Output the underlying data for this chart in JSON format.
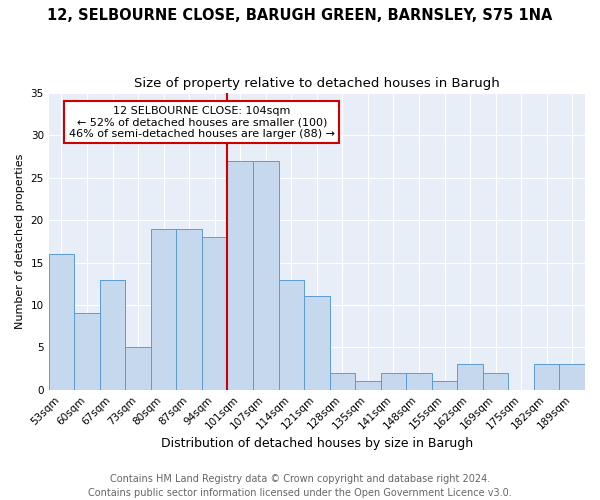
{
  "title": "12, SELBOURNE CLOSE, BARUGH GREEN, BARNSLEY, S75 1NA",
  "subtitle": "Size of property relative to detached houses in Barugh",
  "xlabel": "Distribution of detached houses by size in Barugh",
  "ylabel": "Number of detached properties",
  "categories": [
    "53sqm",
    "60sqm",
    "67sqm",
    "73sqm",
    "80sqm",
    "87sqm",
    "94sqm",
    "101sqm",
    "107sqm",
    "114sqm",
    "121sqm",
    "128sqm",
    "135sqm",
    "141sqm",
    "148sqm",
    "155sqm",
    "162sqm",
    "169sqm",
    "175sqm",
    "182sqm",
    "189sqm"
  ],
  "values": [
    16,
    9,
    13,
    5,
    19,
    19,
    18,
    27,
    27,
    13,
    11,
    2,
    1,
    2,
    2,
    1,
    3,
    2,
    0,
    3,
    3
  ],
  "bar_color": "#c5d8ed",
  "bar_edge_color": "#5b9bd5",
  "vline_index": 7,
  "ylim": [
    0,
    35
  ],
  "yticks": [
    0,
    5,
    10,
    15,
    20,
    25,
    30,
    35
  ],
  "annotation_title": "12 SELBOURNE CLOSE: 104sqm",
  "annotation_line1": "← 52% of detached houses are smaller (100)",
  "annotation_line2": "46% of semi-detached houses are larger (88) →",
  "annotation_box_facecolor": "#ffffff",
  "annotation_box_edgecolor": "#cc0000",
  "vline_color": "#cc0000",
  "footer_line1": "Contains HM Land Registry data © Crown copyright and database right 2024.",
  "footer_line2": "Contains public sector information licensed under the Open Government Licence v3.0.",
  "plot_bg_color": "#e8eef8",
  "fig_bg_color": "#ffffff",
  "grid_color": "#ffffff",
  "title_fontsize": 10.5,
  "subtitle_fontsize": 9.5,
  "xlabel_fontsize": 9,
  "ylabel_fontsize": 8,
  "tick_fontsize": 7.5,
  "annotation_fontsize": 8,
  "footer_fontsize": 7
}
